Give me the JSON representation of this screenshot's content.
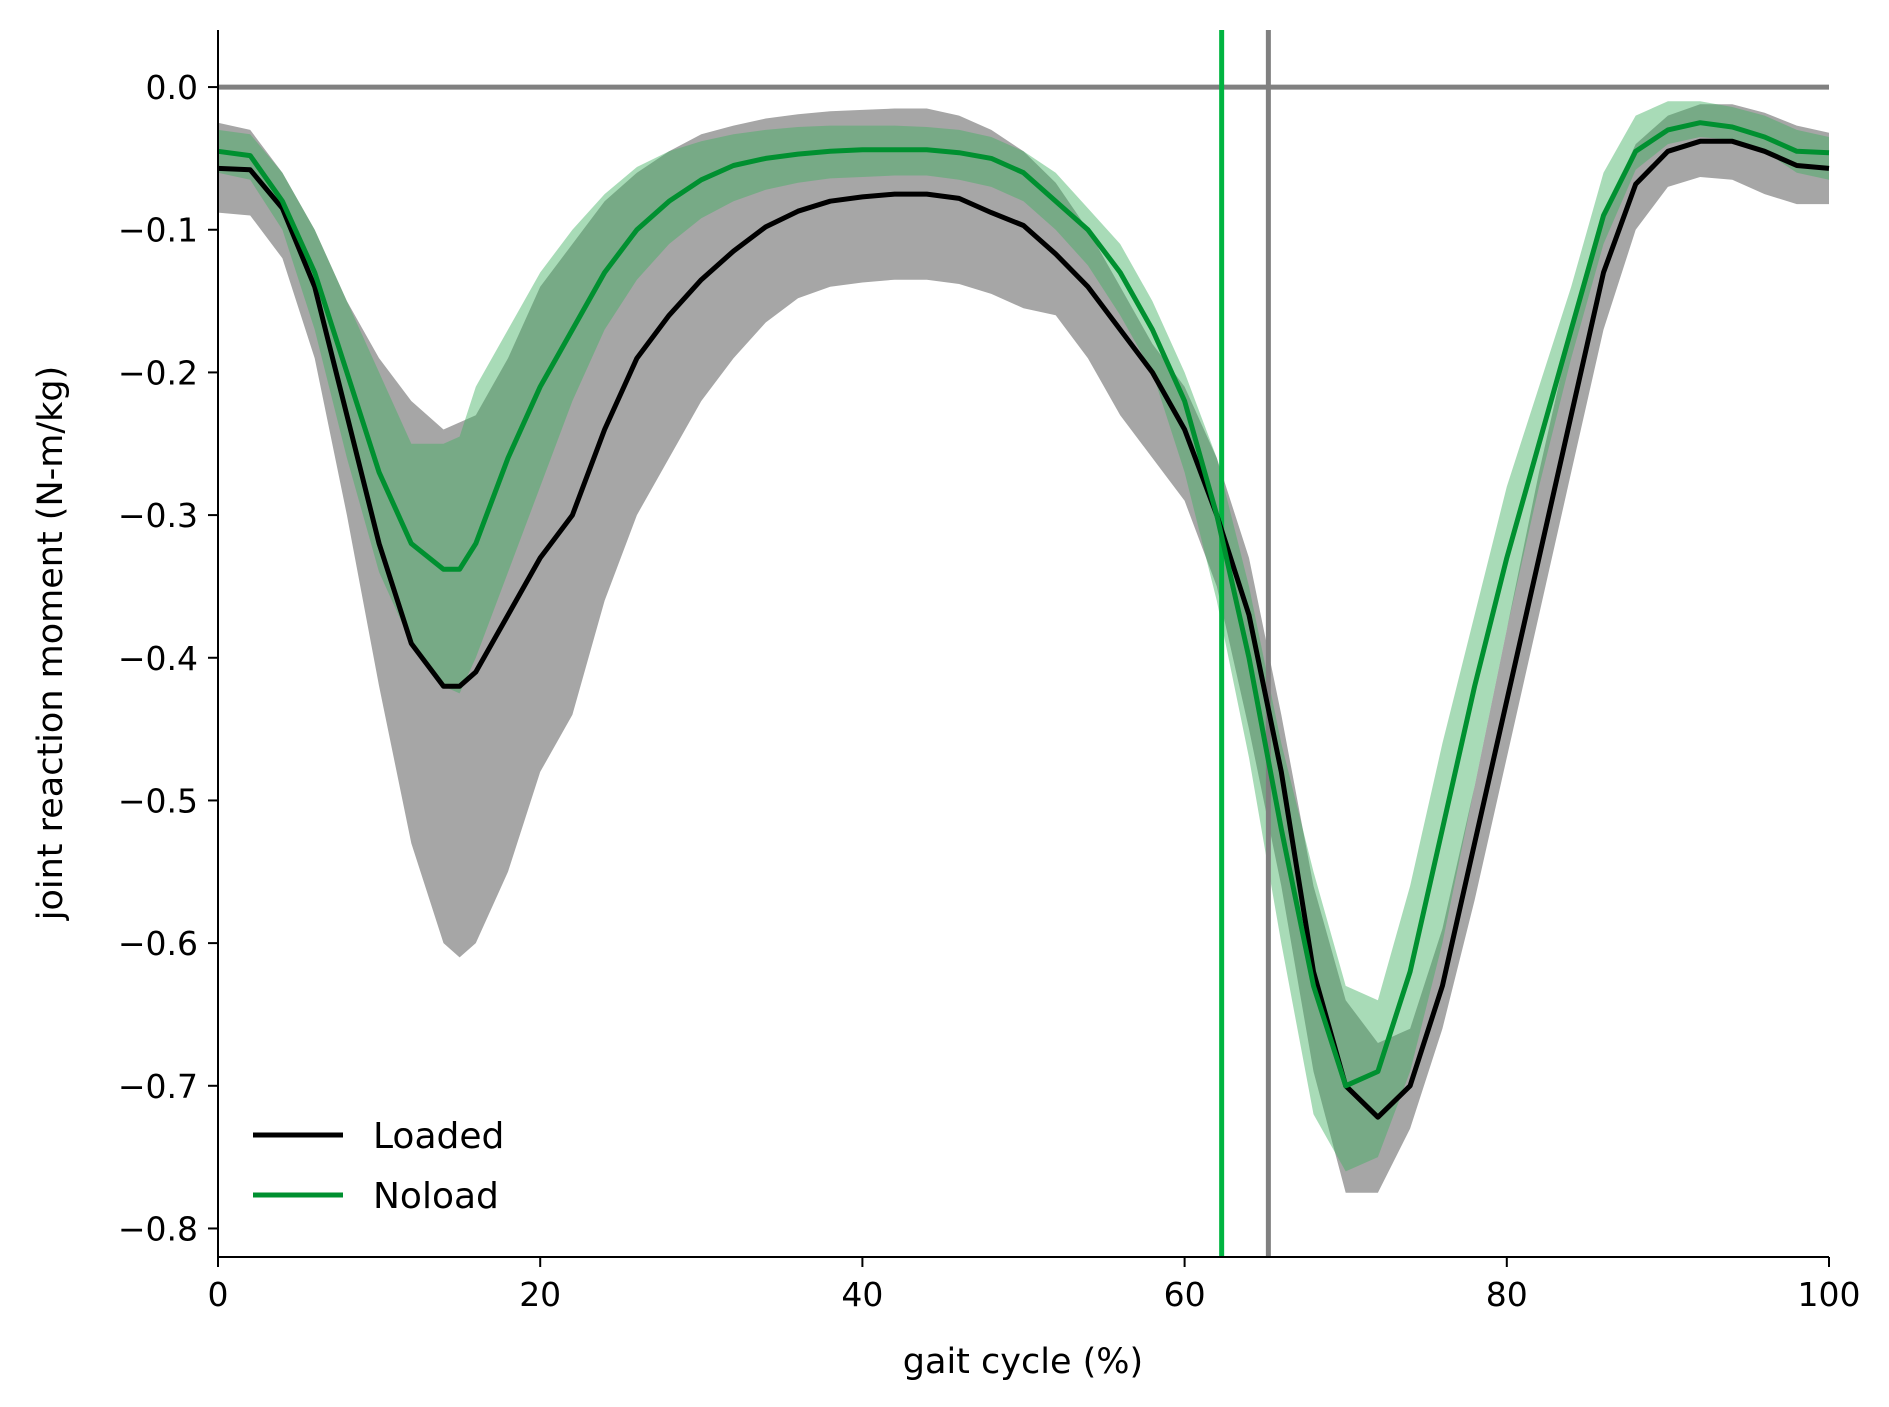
{
  "chart_data": {
    "type": "line",
    "title": "",
    "xlabel": "gait cycle (%)",
    "ylabel": "joint reaction moment (N-m/kg)",
    "xlim": [
      0,
      100
    ],
    "ylim": [
      -0.82,
      0.04
    ],
    "xticks": [
      0,
      20,
      40,
      60,
      80,
      100
    ],
    "xtick_labels": [
      "0",
      "20",
      "40",
      "60",
      "80",
      "100"
    ],
    "yticks": [
      0.0,
      -0.1,
      -0.2,
      -0.3,
      -0.4,
      -0.5,
      -0.6,
      -0.7,
      -0.8
    ],
    "ytick_labels": [
      "0.0",
      "−0.1",
      "−0.2",
      "−0.3",
      "−0.4",
      "−0.5",
      "−0.6",
      "−0.7",
      "−0.8"
    ],
    "grid": false,
    "legend_position": "lower-left",
    "reference_lines": [
      {
        "orientation": "horizontal",
        "value": 0.0,
        "color": "#808080"
      },
      {
        "orientation": "vertical",
        "value": 62.3,
        "color": "#00b440"
      },
      {
        "orientation": "vertical",
        "value": 65.2,
        "color": "#808080"
      }
    ],
    "series": [
      {
        "name": "Loaded",
        "color": "#000000",
        "band_color": "#a6a6a6",
        "x": [
          0,
          2,
          4,
          6,
          8,
          10,
          12,
          14,
          15,
          16,
          18,
          20,
          22,
          24,
          26,
          28,
          30,
          32,
          34,
          36,
          38,
          40,
          42,
          44,
          46,
          48,
          50,
          52,
          54,
          56,
          58,
          60,
          62,
          64,
          66,
          68,
          70,
          72,
          74,
          76,
          78,
          80,
          82,
          84,
          86,
          88,
          90,
          92,
          94,
          96,
          98,
          100
        ],
        "y": [
          -0.057,
          -0.058,
          -0.085,
          -0.14,
          -0.23,
          -0.32,
          -0.39,
          -0.42,
          -0.42,
          -0.41,
          -0.37,
          -0.33,
          -0.3,
          -0.24,
          -0.19,
          -0.16,
          -0.135,
          -0.115,
          -0.098,
          -0.087,
          -0.08,
          -0.077,
          -0.075,
          -0.075,
          -0.078,
          -0.088,
          -0.097,
          -0.117,
          -0.14,
          -0.17,
          -0.2,
          -0.24,
          -0.3,
          -0.37,
          -0.48,
          -0.62,
          -0.7,
          -0.722,
          -0.7,
          -0.63,
          -0.53,
          -0.43,
          -0.33,
          -0.23,
          -0.13,
          -0.068,
          -0.045,
          -0.038,
          -0.038,
          -0.045,
          -0.055,
          -0.057
        ],
        "lower": [
          -0.088,
          -0.09,
          -0.12,
          -0.19,
          -0.3,
          -0.42,
          -0.53,
          -0.6,
          -0.61,
          -0.6,
          -0.55,
          -0.48,
          -0.44,
          -0.36,
          -0.3,
          -0.26,
          -0.22,
          -0.19,
          -0.165,
          -0.148,
          -0.14,
          -0.137,
          -0.135,
          -0.135,
          -0.138,
          -0.145,
          -0.155,
          -0.16,
          -0.19,
          -0.23,
          -0.26,
          -0.29,
          -0.35,
          -0.45,
          -0.56,
          -0.69,
          -0.775,
          -0.775,
          -0.73,
          -0.66,
          -0.57,
          -0.47,
          -0.37,
          -0.27,
          -0.17,
          -0.1,
          -0.07,
          -0.063,
          -0.065,
          -0.075,
          -0.082,
          -0.082
        ],
        "upper": [
          -0.025,
          -0.03,
          -0.06,
          -0.1,
          -0.15,
          -0.19,
          -0.22,
          -0.24,
          -0.235,
          -0.23,
          -0.19,
          -0.14,
          -0.11,
          -0.08,
          -0.06,
          -0.045,
          -0.033,
          -0.027,
          -0.022,
          -0.019,
          -0.017,
          -0.016,
          -0.015,
          -0.015,
          -0.02,
          -0.03,
          -0.045,
          -0.067,
          -0.1,
          -0.14,
          -0.18,
          -0.21,
          -0.26,
          -0.33,
          -0.44,
          -0.56,
          -0.64,
          -0.67,
          -0.66,
          -0.59,
          -0.49,
          -0.38,
          -0.27,
          -0.17,
          -0.09,
          -0.04,
          -0.02,
          -0.012,
          -0.012,
          -0.018,
          -0.027,
          -0.032
        ]
      },
      {
        "name": "Noload",
        "color": "#009030",
        "band_color": "#3fb060",
        "x": [
          0,
          2,
          4,
          6,
          8,
          10,
          12,
          14,
          15,
          16,
          18,
          20,
          22,
          24,
          26,
          28,
          30,
          32,
          34,
          36,
          38,
          40,
          42,
          44,
          46,
          48,
          50,
          52,
          54,
          56,
          58,
          60,
          62,
          64,
          66,
          68,
          70,
          72,
          74,
          76,
          78,
          80,
          82,
          84,
          86,
          88,
          90,
          92,
          94,
          96,
          98,
          100
        ],
        "y": [
          -0.045,
          -0.048,
          -0.08,
          -0.13,
          -0.2,
          -0.27,
          -0.32,
          -0.338,
          -0.338,
          -0.32,
          -0.26,
          -0.21,
          -0.17,
          -0.13,
          -0.1,
          -0.08,
          -0.065,
          -0.055,
          -0.05,
          -0.047,
          -0.045,
          -0.044,
          -0.044,
          -0.044,
          -0.046,
          -0.05,
          -0.06,
          -0.08,
          -0.1,
          -0.13,
          -0.17,
          -0.22,
          -0.3,
          -0.4,
          -0.52,
          -0.63,
          -0.7,
          -0.69,
          -0.62,
          -0.52,
          -0.42,
          -0.33,
          -0.25,
          -0.17,
          -0.09,
          -0.045,
          -0.03,
          -0.025,
          -0.028,
          -0.035,
          -0.045,
          -0.046
        ],
        "lower": [
          -0.06,
          -0.065,
          -0.1,
          -0.17,
          -0.26,
          -0.34,
          -0.39,
          -0.42,
          -0.425,
          -0.4,
          -0.34,
          -0.28,
          -0.22,
          -0.17,
          -0.135,
          -0.11,
          -0.092,
          -0.08,
          -0.072,
          -0.067,
          -0.064,
          -0.063,
          -0.062,
          -0.062,
          -0.065,
          -0.07,
          -0.08,
          -0.1,
          -0.125,
          -0.16,
          -0.2,
          -0.27,
          -0.36,
          -0.47,
          -0.6,
          -0.72,
          -0.76,
          -0.75,
          -0.69,
          -0.6,
          -0.49,
          -0.38,
          -0.28,
          -0.19,
          -0.11,
          -0.058,
          -0.04,
          -0.035,
          -0.037,
          -0.045,
          -0.06,
          -0.065
        ],
        "upper": [
          -0.03,
          -0.033,
          -0.06,
          -0.1,
          -0.15,
          -0.2,
          -0.25,
          -0.25,
          -0.245,
          -0.21,
          -0.17,
          -0.13,
          -0.1,
          -0.075,
          -0.056,
          -0.045,
          -0.038,
          -0.033,
          -0.03,
          -0.028,
          -0.027,
          -0.027,
          -0.027,
          -0.028,
          -0.03,
          -0.035,
          -0.045,
          -0.06,
          -0.085,
          -0.11,
          -0.15,
          -0.2,
          -0.26,
          -0.35,
          -0.46,
          -0.55,
          -0.63,
          -0.64,
          -0.56,
          -0.46,
          -0.37,
          -0.28,
          -0.21,
          -0.14,
          -0.06,
          -0.02,
          -0.01,
          -0.01,
          -0.014,
          -0.02,
          -0.03,
          -0.035
        ]
      }
    ]
  }
}
